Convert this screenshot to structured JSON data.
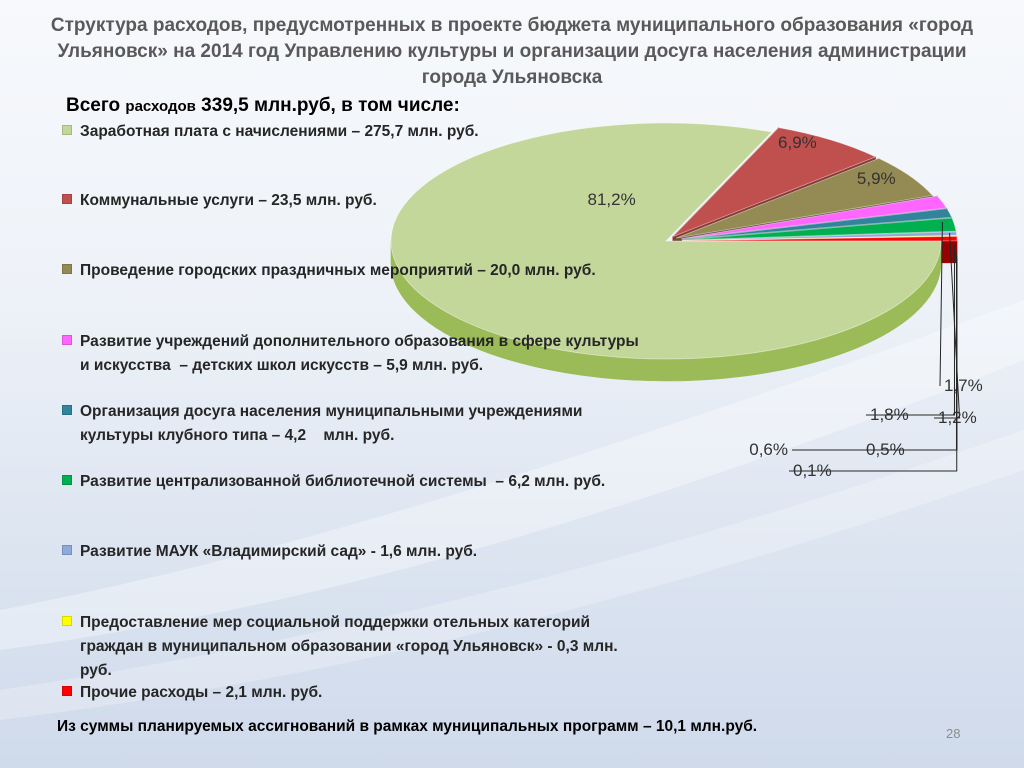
{
  "slide": {
    "title": "Структура расходов, предусмотренных в проекте бюджета муниципального образования «город Ульяновск» на 2014 год Управлению культуры и организации досуга населения администрации города Ульяновска",
    "total_prefix": "Всего ",
    "total_small": "расходов",
    "total_rest": " 339,5 млн.руб, в том числе:",
    "footer": "Из суммы планируемых ассигнований в рамках муниципальных программ – 10,1 млн.руб.",
    "page_number": "28"
  },
  "legend": [
    {
      "text": "Заработная плата с начислениями – 275,7 млн. руб.",
      "color": "#c4d79b"
    },
    {
      "text": "Коммунальные услуги – 23,5 млн. руб.",
      "color": "#c0504d"
    },
    {
      "text": "Проведение городских праздничных мероприятий – 20,0 млн. руб.",
      "color": "#948a54"
    },
    {
      "text": "Развитие учреждений дополнительного образования в сфере культуры\nи искусства  – детских школ искусств – 5,9 млн. руб.",
      "color": "#ff66ff"
    },
    {
      "text": "Организация досуга населения муниципальными учреждениями\nкультуры клубного типа – 4,2    млн. руб.",
      "color": "#31849b"
    },
    {
      "text": "Развитие централизованной библиотечной системы  – 6,2 млн. руб.",
      "color": "#00b050"
    },
    {
      "text": "Развитие МАУК «Владимирский сад» - 1,6 млн. руб.",
      "color": "#8ea9db"
    },
    {
      "text": "Предоставление мер социальной поддержки отельных категорий\nграждан в муниципальном образовании «город Ульяновск» - 0,3 млн.\nруб.",
      "color": "#ffff00"
    },
    {
      "text": "Прочие расходы – 2,1 млн. руб.",
      "color": "#ff0000"
    }
  ],
  "chart_data": {
    "type": "pie",
    "title": "",
    "start_angle_deg": 0,
    "slices": [
      {
        "label": "Заработная плата с начислениями",
        "value": 81.2,
        "display": "81,2%",
        "color": "#c4d79b",
        "side": "#9bbb59"
      },
      {
        "label": "Коммунальные услуги",
        "value": 6.9,
        "display": "6,9%",
        "color": "#c0504d",
        "side": "#8c3836"
      },
      {
        "label": "Проведение городских праздничных мероприятий",
        "value": 5.9,
        "display": "5,9%",
        "color": "#948a54",
        "side": "#5f5833"
      },
      {
        "label": "Развитие учреждений дополнительного образования",
        "value": 1.7,
        "display": "1,7%",
        "color": "#ff66ff",
        "side": "#9c2f9c"
      },
      {
        "label": "Организация досуга населения",
        "value": 1.2,
        "display": "1,2%",
        "color": "#31849b",
        "side": "#1f4f5d"
      },
      {
        "label": "Развитие централизованной библиотечной системы",
        "value": 1.8,
        "display": "1,8%",
        "color": "#00b050",
        "side": "#006b30"
      },
      {
        "label": "Развитие МАУК «Владимирский сад»",
        "value": 0.5,
        "display": "0,5%",
        "color": "#8ea9db",
        "side": "#5a6f96"
      },
      {
        "label": "Предоставление мер социальной поддержки",
        "value": 0.1,
        "display": "0,1%",
        "color": "#ffff00",
        "side": "#a6a600"
      },
      {
        "label": "Прочие расходы",
        "value": 0.6,
        "display": "0,6%",
        "color": "#ff0000",
        "side": "#990000"
      }
    ]
  }
}
